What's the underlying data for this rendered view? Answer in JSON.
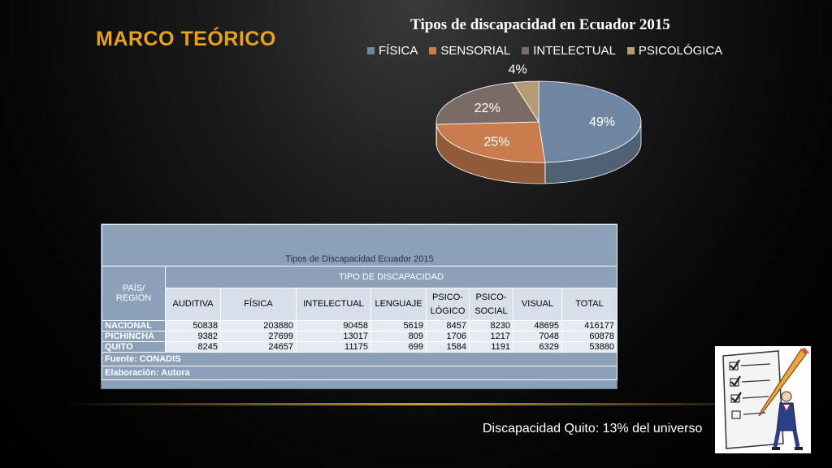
{
  "slide": {
    "title": "MARCO TEÓRICO",
    "caption": "Discapacidad Quito: 13% del universo"
  },
  "chart_data": {
    "type": "pie",
    "title": "Tipos de discapacidad en Ecuador 2015",
    "categories": [
      "FÍSICA",
      "SENSORIAL",
      "INTELECTUAL",
      "PSICOLÓGICA"
    ],
    "values": [
      49,
      25,
      22,
      4
    ],
    "labels": [
      "49%",
      "25%",
      "22%",
      "4%"
    ],
    "colors": [
      "#6f86a3",
      "#c97d4e",
      "#7a6c64",
      "#b59a76"
    ],
    "legend_position": "top"
  },
  "table": {
    "title": "Tipos de Discapacidad Ecuador 2015",
    "region_header": "PAÍS/ REGIÓN",
    "group_header": "TIPO DE DISCAPACIDAD",
    "columns": [
      "AUDITIVA",
      "FÍSICA",
      "INTELECTUAL",
      "LENGUAJE",
      "PSICO-LÓGICO",
      "PSICO-SOCIAL",
      "VISUAL",
      "TOTAL"
    ],
    "rows": [
      {
        "label": "NACIONAL",
        "values": [
          "50838",
          "203880",
          "90458",
          "5619",
          "8457",
          "8230",
          "48695",
          "416177"
        ]
      },
      {
        "label": "PICHINCHA",
        "values": [
          "9382",
          "27699",
          "13017",
          "809",
          "1706",
          "1217",
          "7048",
          "60878"
        ]
      },
      {
        "label": "QUITO",
        "values": [
          "8245",
          "24657",
          "11175",
          "699",
          "1584",
          "1191",
          "6329",
          "53880"
        ]
      }
    ],
    "source": "Fuente: CONADIS",
    "author": "Elaboración: Autora"
  }
}
